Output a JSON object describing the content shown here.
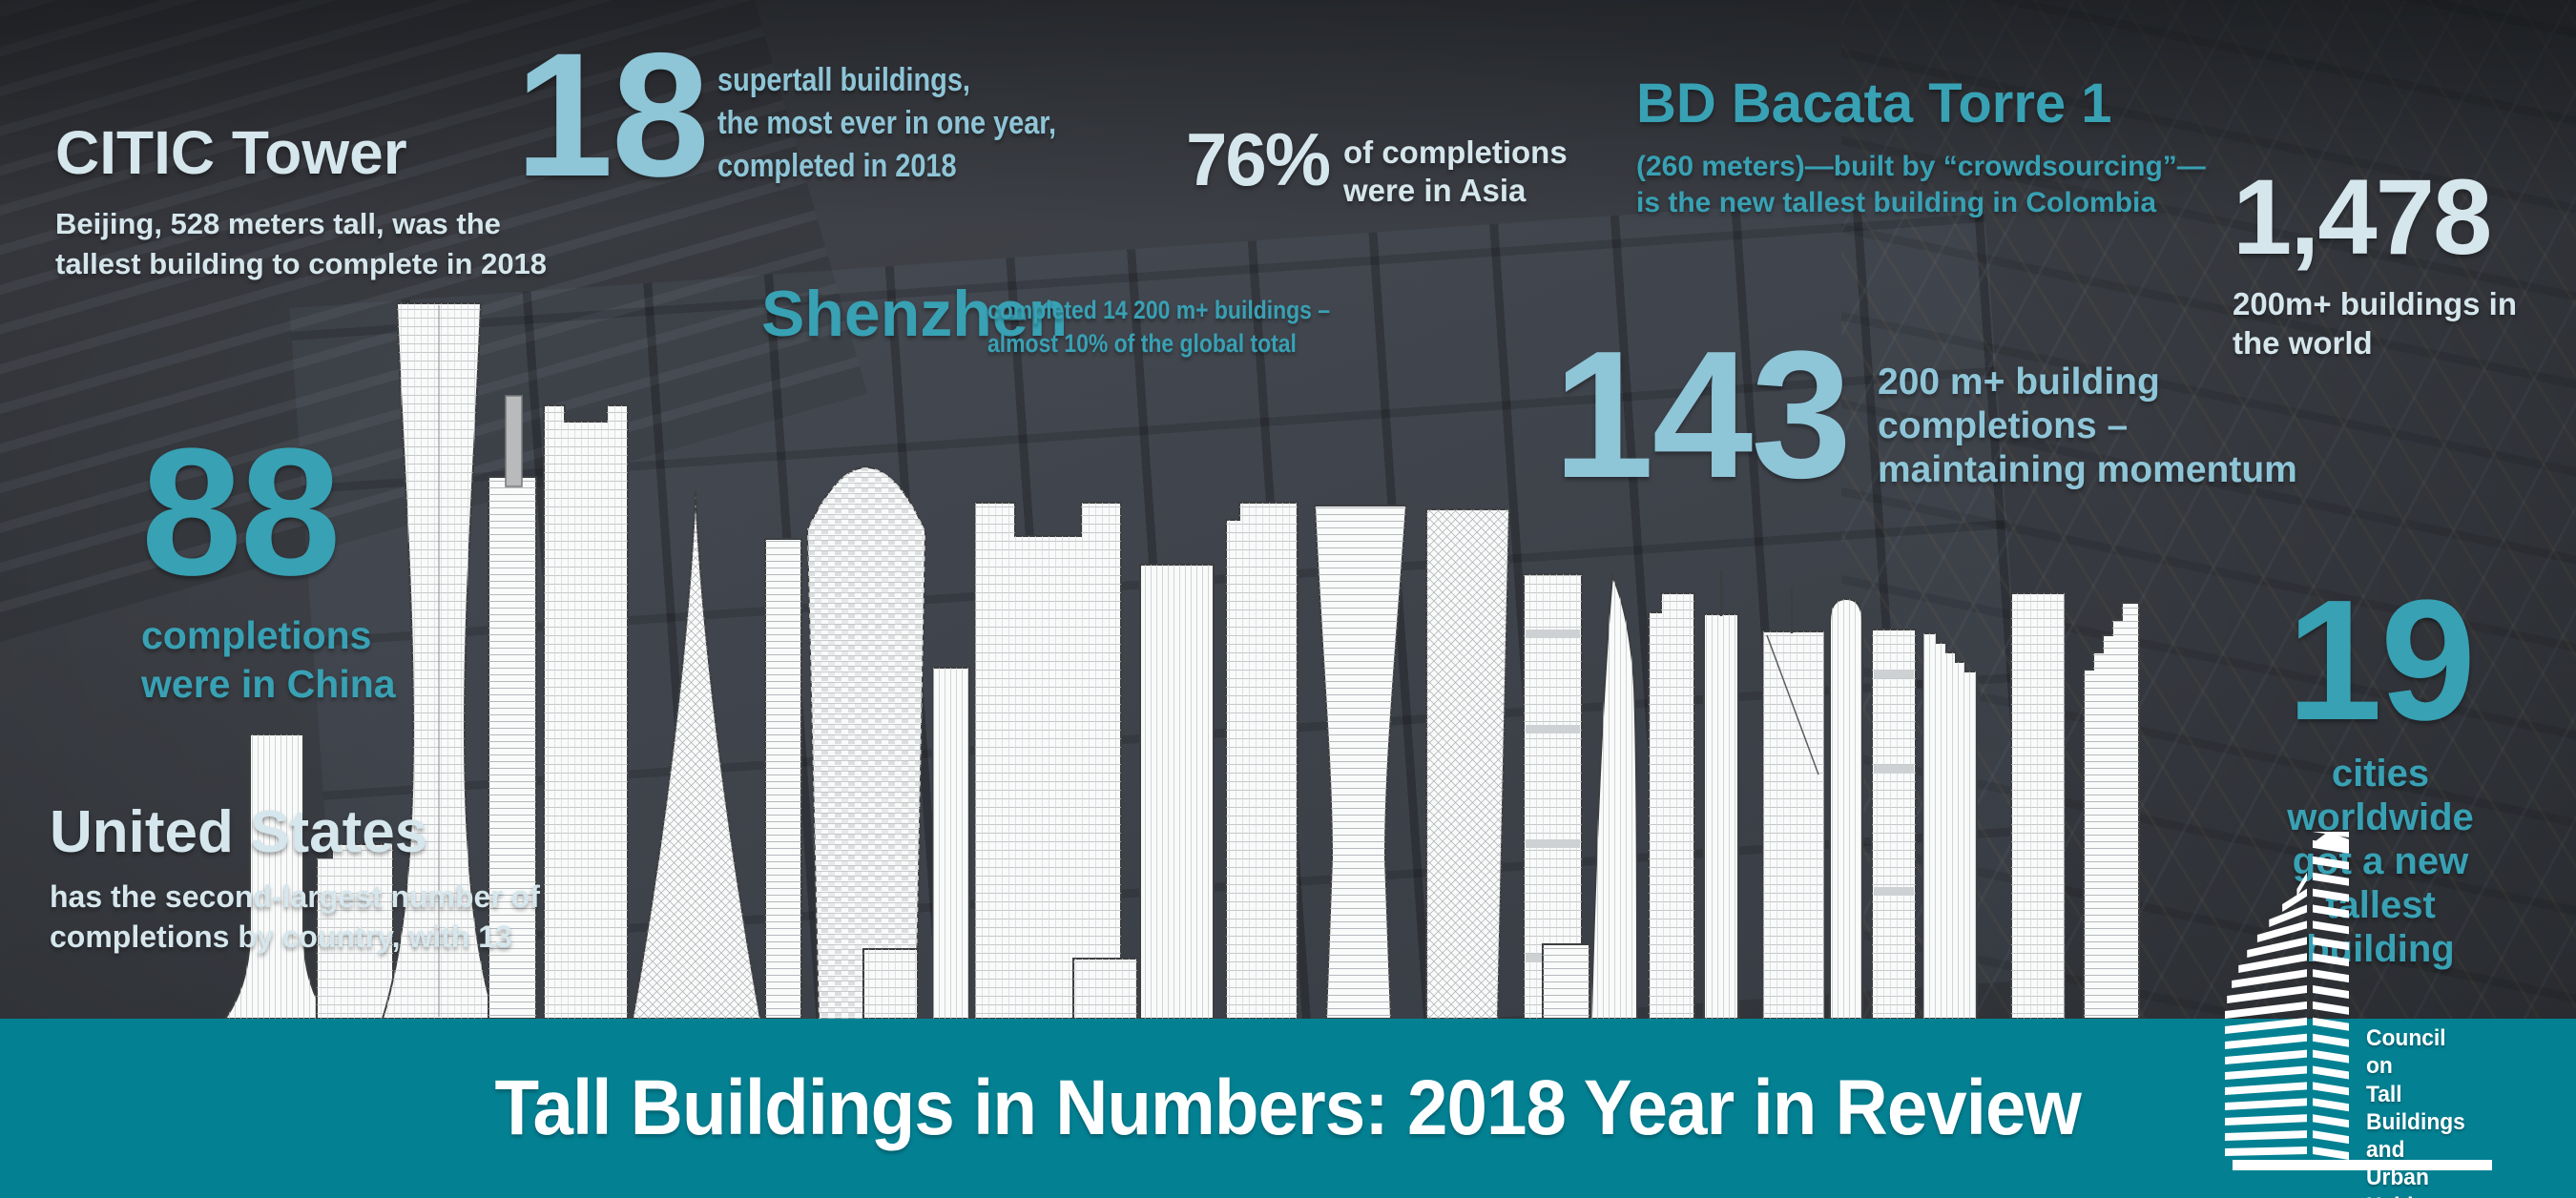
{
  "meta": {
    "title": "Tall Buildings in Numbers: 2018 Year in Review"
  },
  "theme": {
    "background": "#3b3e44",
    "banner_teal": "#038193",
    "accent_teal": "#38a1b4",
    "accent_lightblue": "#8ec5d7",
    "accent_pale": "#d5e6ec",
    "building_fill": "#f9fafa",
    "building_line": "#3c3e40"
  },
  "stats": {
    "citic": {
      "title": "CITIC Tower",
      "desc": "Beijing, 528 meters tall, was the\ntallest building to complete in 2018"
    },
    "supertall": {
      "number": "18",
      "desc": "supertall buildings,\nthe most ever in one year,\ncompleted in 2018"
    },
    "asia": {
      "number": "76%",
      "desc": "of completions\nwere in Asia"
    },
    "bacata": {
      "title": "BD Bacata Torre 1",
      "desc": "(260 meters)—built by “crowdsourcing”—\nis the new tallest building in Colombia"
    },
    "world": {
      "number": "1,478",
      "desc": "200m+ buildings in\nthe world"
    },
    "shenzhen": {
      "title": "Shenzhen",
      "desc": "completed 14 200 m+ buildings –\nalmost 10% of the global total"
    },
    "completions": {
      "number": "143",
      "desc": "200 m+ building\ncompletions –\nmaintaining momentum"
    },
    "china": {
      "number": "88",
      "desc": "completions\nwere in China"
    },
    "us": {
      "title": "United States",
      "desc": "has the second-largest number of\ncompletions by country, with 13"
    },
    "cities": {
      "number": "19",
      "desc": "cities worldwide\ngot a new tallest\nbuilding"
    }
  },
  "banner": {
    "title": "Tall Buildings in Numbers: 2018 Year in Review"
  },
  "logo": {
    "lines": [
      "Council",
      "on",
      "Tall Buildings",
      "and",
      "Urban Habitat"
    ]
  },
  "chart_data": {
    "type": "table",
    "title": "Tall Buildings in Numbers: 2018 Year in Review",
    "rows": [
      {
        "label": "Supertall buildings completed in 2018 (most ever in one year)",
        "value": 18
      },
      {
        "label": "Share of 2018 completions located in Asia",
        "value": "76%"
      },
      {
        "label": "200 m+ building completions in 2018 (maintaining momentum)",
        "value": 143
      },
      {
        "label": "2018 completions in China",
        "value": 88
      },
      {
        "label": "2018 completions in United States (second-largest by country)",
        "value": 13
      },
      {
        "label": "200 m+ buildings completed in Shenzhen (almost 10% of global total)",
        "value": 14
      },
      {
        "label": "200m+ buildings in the world",
        "value": 1478
      },
      {
        "label": "Cities worldwide that got a new tallest building",
        "value": 19
      },
      {
        "label": "CITIC Tower, Beijing — tallest building to complete in 2018 (meters)",
        "value": 528
      },
      {
        "label": "BD Bacata Torre 1 — new tallest building in Colombia, built by crowdsourcing (meters)",
        "value": 260
      }
    ]
  }
}
